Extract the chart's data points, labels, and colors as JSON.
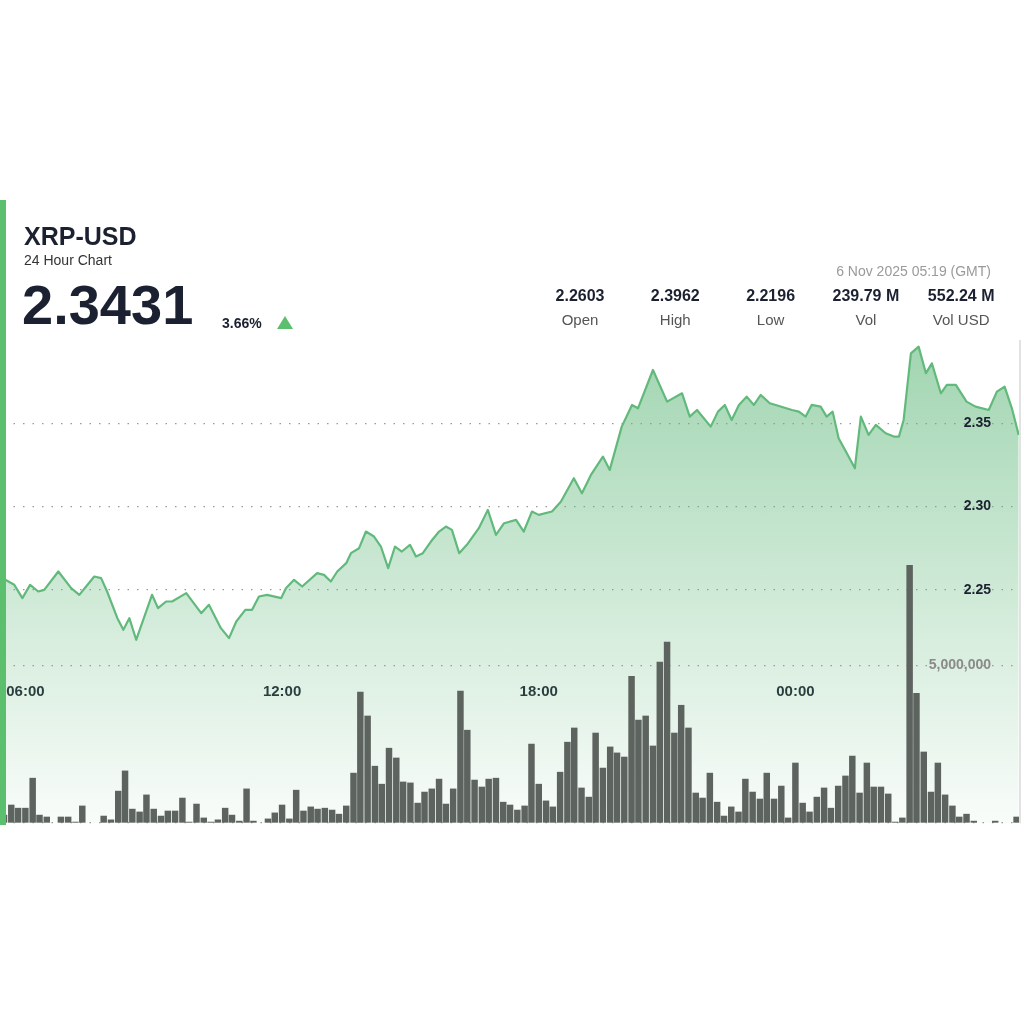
{
  "chart_data": {
    "type": "area",
    "title": "XRP-USD",
    "subtitle": "24 Hour Chart",
    "annotations": [
      "2.3431",
      "3.66%",
      "2.2603",
      "Open",
      "2.3962",
      "High",
      "2.2196",
      "Low",
      "239.79 M",
      "Vol",
      "552.24 M",
      "Vol USD",
      "6 Nov 2025 05:19 (GMT)"
    ],
    "xlim": [
      5.5,
      29.25
    ],
    "xticks": [
      {
        "value": 6,
        "label": "06:00"
      },
      {
        "value": 12,
        "label": "12:00"
      },
      {
        "value": 18,
        "label": "18:00"
      },
      {
        "value": 24,
        "label": "00:00"
      }
    ],
    "ylim": [
      2.11,
      2.4
    ],
    "yticks": [
      {
        "value": 2.25,
        "label": "2.25"
      },
      {
        "value": 2.3,
        "label": "2.30"
      },
      {
        "value": 2.35,
        "label": "2.35"
      }
    ],
    "y2lim": [
      0,
      15300000
    ],
    "y2ticks": [
      {
        "value": 0,
        "label": null
      },
      {
        "value": 5000000,
        "label": "5,000,000"
      }
    ],
    "grid": "y",
    "marker": "none",
    "series": [
      {
        "color": "#62b97c",
        "x": [
          5.53,
          5.74,
          5.93,
          6.11,
          6.3,
          6.44,
          6.77,
          7.07,
          7.26,
          7.42,
          7.61,
          7.77,
          7.91,
          8.15,
          8.29,
          8.43,
          8.59,
          8.96,
          9.1,
          9.29,
          9.43,
          9.76,
          10.11,
          10.29,
          10.57,
          10.76,
          10.93,
          11.14,
          11.3,
          11.46,
          11.65,
          11.98,
          12.09,
          12.28,
          12.47,
          12.82,
          12.98,
          13.14,
          13.29,
          13.5,
          13.61,
          13.8,
          13.96,
          14.15,
          14.31,
          14.48,
          14.64,
          14.8,
          14.99,
          15.13,
          15.29,
          15.48,
          15.67,
          15.83,
          15.97,
          16.14,
          16.32,
          16.6,
          16.81,
          17,
          17.19,
          17.47,
          17.65,
          17.84,
          18,
          18.31,
          18.52,
          18.82,
          19.01,
          19.22,
          19.5,
          19.66,
          19.94,
          20.18,
          20.32,
          20.67,
          21,
          21.35,
          21.53,
          21.7,
          22.02,
          22.19,
          22.35,
          22.51,
          22.68,
          22.86,
          23.03,
          23.19,
          23.4,
          23.54,
          23.92,
          24.08,
          24.24,
          24.38,
          24.59,
          24.73,
          24.87,
          25.01,
          25.18,
          25.39,
          25.53,
          25.71,
          25.88,
          26.11,
          26.3,
          26.42,
          26.53,
          26.7,
          26.88,
          27.05,
          27.19,
          27.4,
          27.54,
          27.75,
          28,
          28.21,
          28.52,
          28.71,
          28.89,
          29.06,
          29.22
        ],
        "values": [
          2.256,
          2.253,
          2.245,
          2.253,
          2.249,
          2.25,
          2.261,
          2.251,
          2.247,
          2.252,
          2.258,
          2.257,
          2.249,
          2.233,
          2.226,
          2.233,
          2.22,
          2.247,
          2.239,
          2.243,
          2.243,
          2.248,
          2.236,
          2.241,
          2.227,
          2.221,
          2.231,
          2.238,
          2.238,
          2.246,
          2.247,
          2.245,
          2.251,
          2.256,
          2.252,
          2.26,
          2.259,
          2.255,
          2.261,
          2.266,
          2.272,
          2.275,
          2.285,
          2.282,
          2.276,
          2.263,
          2.276,
          2.273,
          2.277,
          2.27,
          2.272,
          2.279,
          2.285,
          2.288,
          2.286,
          2.272,
          2.277,
          2.287,
          2.298,
          2.283,
          2.29,
          2.292,
          2.285,
          2.297,
          2.295,
          2.297,
          2.303,
          2.317,
          2.308,
          2.319,
          2.33,
          2.322,
          2.348,
          2.361,
          2.359,
          2.382,
          2.363,
          2.368,
          2.354,
          2.358,
          2.348,
          2.357,
          2.361,
          2.352,
          2.361,
          2.366,
          2.361,
          2.367,
          2.362,
          2.361,
          2.358,
          2.357,
          2.354,
          2.361,
          2.36,
          2.354,
          2.357,
          2.341,
          2.333,
          2.323,
          2.354,
          2.343,
          2.349,
          2.344,
          2.342,
          2.342,
          2.352,
          2.392,
          2.396,
          2.38,
          2.386,
          2.368,
          2.373,
          2.373,
          2.363,
          2.36,
          2.358,
          2.369,
          2.372,
          2.359,
          2.343
        ]
      },
      {
        "type": "bar",
        "axis": "y2",
        "color": "#5d635e",
        "x": [
          5.5,
          5.67,
          5.83,
          6,
          6.17,
          6.33,
          6.5,
          6.67,
          6.83,
          7,
          7.17,
          7.33,
          7.5,
          7.67,
          7.83,
          8,
          8.17,
          8.33,
          8.5,
          8.67,
          8.83,
          9,
          9.17,
          9.33,
          9.5,
          9.67,
          9.83,
          10,
          10.17,
          10.33,
          10.5,
          10.67,
          10.83,
          11,
          11.17,
          11.33,
          11.5,
          11.67,
          11.83,
          12,
          12.17,
          12.33,
          12.5,
          12.67,
          12.83,
          13,
          13.17,
          13.33,
          13.5,
          13.67,
          13.83,
          14,
          14.17,
          14.33,
          14.5,
          14.67,
          14.83,
          15,
          15.17,
          15.33,
          15.5,
          15.67,
          15.83,
          16,
          16.17,
          16.33,
          16.5,
          16.67,
          16.83,
          17,
          17.17,
          17.33,
          17.5,
          17.67,
          17.83,
          18,
          18.17,
          18.33,
          18.5,
          18.67,
          18.83,
          19,
          19.17,
          19.33,
          19.5,
          19.67,
          19.83,
          20,
          20.17,
          20.33,
          20.5,
          20.67,
          20.83,
          21,
          21.17,
          21.33,
          21.5,
          21.67,
          21.83,
          22,
          22.17,
          22.33,
          22.5,
          22.67,
          22.83,
          23,
          23.17,
          23.33,
          23.5,
          23.67,
          23.83,
          24,
          24.17,
          24.33,
          24.5,
          24.67,
          24.83,
          25,
          25.17,
          25.33,
          25.5,
          25.67,
          25.83,
          26,
          26.17,
          26.33,
          26.5,
          26.67,
          26.83,
          27,
          27.17,
          27.33,
          27.5,
          27.67,
          27.83,
          28,
          28.17,
          28.33,
          28.5,
          28.67,
          28.83,
          29,
          29.17
        ],
        "values": [
          250000,
          570000,
          470000,
          470000,
          1420000,
          250000,
          190000,
          null,
          190000,
          190000,
          30000,
          540000,
          null,
          null,
          220000,
          100000,
          1010000,
          1650000,
          440000,
          350000,
          890000,
          440000,
          220000,
          380000,
          380000,
          790000,
          30000,
          600000,
          160000,
          30000,
          100000,
          470000,
          250000,
          60000,
          1080000,
          60000,
          null,
          130000,
          320000,
          570000,
          130000,
          1040000,
          380000,
          510000,
          440000,
          470000,
          410000,
          280000,
          540000,
          1580000,
          4150000,
          3390000,
          1800000,
          1230000,
          2370000,
          2060000,
          1300000,
          1270000,
          630000,
          980000,
          1080000,
          1390000,
          600000,
          1080000,
          4180000,
          2940000,
          1360000,
          1140000,
          1390000,
          1420000,
          660000,
          570000,
          410000,
          540000,
          2500000,
          1230000,
          700000,
          510000,
          1610000,
          2560000,
          3010000,
          1110000,
          820000,
          2850000,
          1740000,
          2410000,
          2220000,
          2090000,
          4650000,
          3260000,
          3390000,
          2440000,
          5100000,
          5730000,
          2850000,
          3730000,
          3010000,
          950000,
          790000,
          1580000,
          660000,
          220000,
          510000,
          350000,
          1390000,
          980000,
          760000,
          1580000,
          760000,
          1170000,
          160000,
          1900000,
          630000,
          350000,
          820000,
          1110000,
          470000,
          1170000,
          1490000,
          2120000,
          950000,
          1900000,
          1140000,
          1140000,
          920000,
          30000,
          160000,
          8160000,
          4110000,
          2250000,
          980000,
          1900000,
          890000,
          540000,
          190000,
          280000,
          60000,
          null,
          null,
          60000,
          null,
          null,
          190000
        ]
      }
    ]
  }
}
